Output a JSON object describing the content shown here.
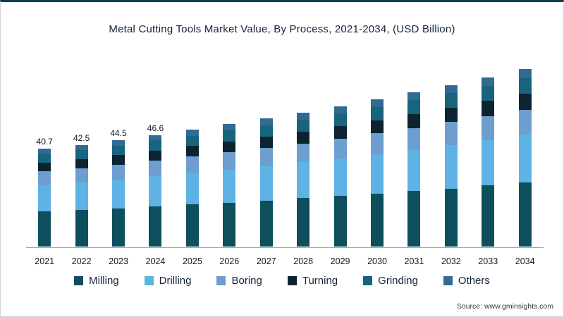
{
  "page": {
    "title": "Metal Cutting Tools Market Value, By Process, 2021-2034, (USD Billion)",
    "source": "Source: www.gminsights.com"
  },
  "chart_data": {
    "type": "bar",
    "stacked": true,
    "title": "Metal Cutting Tools Market Value, By Process, 2021-2034, (USD Billion)",
    "xlabel": "",
    "ylabel": "USD Billion",
    "ylim": [
      0,
      80
    ],
    "grid": false,
    "legend_position": "bottom",
    "categories": [
      "2021",
      "2022",
      "2023",
      "2024",
      "2025",
      "2026",
      "2027",
      "2028",
      "2029",
      "2030",
      "2031",
      "2032",
      "2033",
      "2034"
    ],
    "totals": [
      40.7,
      42.5,
      44.5,
      46.6,
      48.8,
      51.1,
      53.5,
      56.0,
      58.7,
      61.5,
      64.4,
      67.5,
      70.7,
      74.1
    ],
    "total_labels": [
      "40.7",
      "42.5",
      "44.5",
      "46.6",
      "",
      "",
      "",
      "",
      "",
      "",
      "",
      "",
      "",
      ""
    ],
    "series": [
      {
        "name": "Milling",
        "color": "#0e4f5e",
        "values": [
          14.7,
          15.3,
          16.0,
          16.8,
          17.6,
          18.4,
          19.3,
          20.2,
          21.1,
          22.1,
          23.2,
          24.3,
          25.5,
          26.7
        ]
      },
      {
        "name": "Drilling",
        "color": "#5eb3e4",
        "values": [
          11.0,
          11.5,
          12.0,
          12.6,
          13.2,
          13.8,
          14.4,
          15.1,
          15.8,
          16.6,
          17.4,
          18.2,
          19.1,
          20.0
        ]
      },
      {
        "name": "Boring",
        "color": "#6d9ecf",
        "values": [
          5.7,
          6.0,
          6.2,
          6.5,
          6.8,
          7.2,
          7.5,
          7.8,
          8.2,
          8.6,
          9.0,
          9.5,
          9.9,
          10.4
        ]
      },
      {
        "name": "Turning",
        "color": "#0d2330",
        "values": [
          3.7,
          3.8,
          4.0,
          4.2,
          4.4,
          4.6,
          4.8,
          5.0,
          5.3,
          5.5,
          5.8,
          6.1,
          6.4,
          6.7
        ]
      },
      {
        "name": "Grinding",
        "color": "#17647f",
        "values": [
          3.7,
          3.8,
          4.0,
          4.2,
          4.4,
          4.6,
          4.8,
          5.0,
          5.3,
          5.5,
          5.8,
          6.1,
          6.4,
          6.7
        ]
      },
      {
        "name": "Others",
        "color": "#316a93",
        "values": [
          2.0,
          2.1,
          2.2,
          2.3,
          2.4,
          2.6,
          2.7,
          2.8,
          2.9,
          3.1,
          3.2,
          3.4,
          3.5,
          3.7
        ]
      }
    ]
  }
}
